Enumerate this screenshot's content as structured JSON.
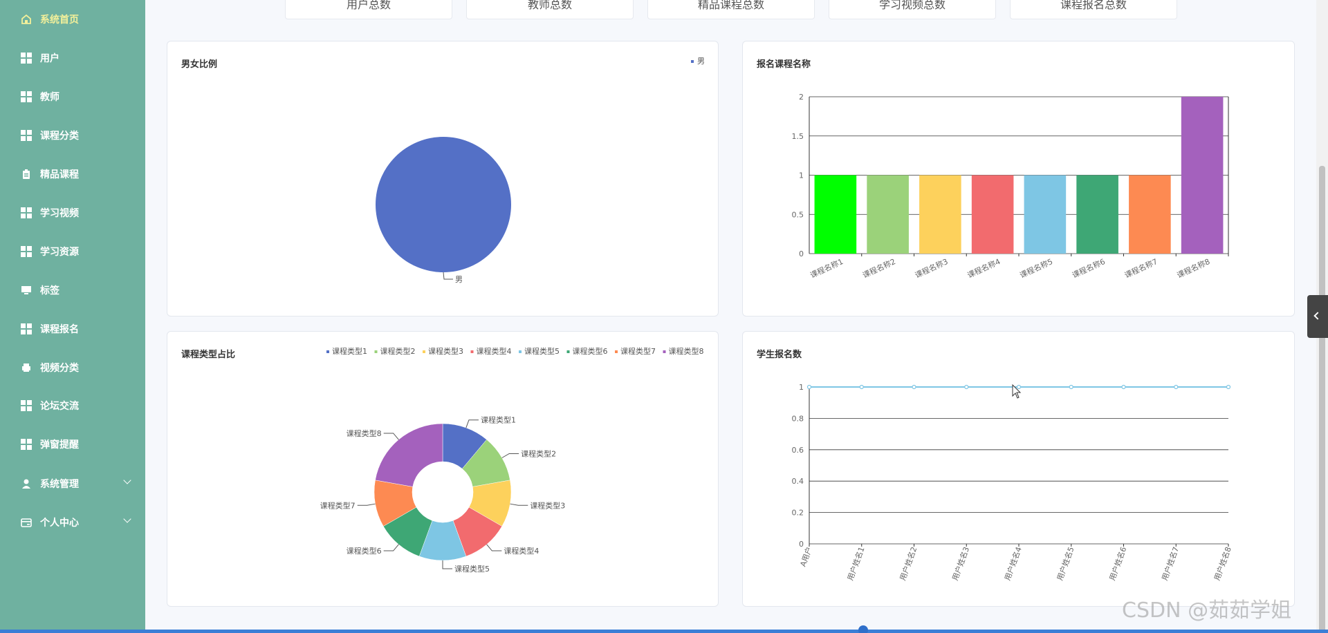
{
  "sidebar": {
    "items": [
      {
        "label": "系统首页",
        "icon": "home-icon",
        "active": true
      },
      {
        "label": "用户",
        "icon": "grid-icon"
      },
      {
        "label": "教师",
        "icon": "grid-icon"
      },
      {
        "label": "课程分类",
        "icon": "grid-icon"
      },
      {
        "label": "精品课程",
        "icon": "clipboard-icon"
      },
      {
        "label": "学习视频",
        "icon": "grid-icon"
      },
      {
        "label": "学习资源",
        "icon": "grid-icon"
      },
      {
        "label": "标签",
        "icon": "monitor-icon"
      },
      {
        "label": "课程报名",
        "icon": "grid-icon"
      },
      {
        "label": "视频分类",
        "icon": "printer-icon"
      },
      {
        "label": "论坛交流",
        "icon": "grid-icon"
      },
      {
        "label": "弹窗提醒",
        "icon": "grid-icon"
      },
      {
        "label": "系统管理",
        "icon": "user-icon",
        "expandable": true
      },
      {
        "label": "个人中心",
        "icon": "card-icon",
        "expandable": true
      }
    ]
  },
  "stats": {
    "cards": [
      "用户总数",
      "教师总数",
      "精品课程总数",
      "学习视频总数",
      "课程报名总数"
    ]
  },
  "panels": {
    "gender": {
      "title": "男女比例",
      "legend": "男",
      "slice_label": "男"
    },
    "enroll_course": {
      "title": "报名课程名称"
    },
    "course_type": {
      "title": "课程类型占比"
    },
    "student_enroll": {
      "title": "学生报名数"
    }
  },
  "chart_data": [
    {
      "type": "pie",
      "title": "男女比例",
      "categories": [
        "男"
      ],
      "values": [
        1
      ],
      "colors": [
        "#5470c6"
      ],
      "legend_position": "top-right"
    },
    {
      "type": "bar",
      "title": "报名课程名称",
      "categories": [
        "课程名称1",
        "课程名称2",
        "课程名称3",
        "课程名称4",
        "课程名称5",
        "课程名称6",
        "课程名称7",
        "课程名称8"
      ],
      "values": [
        1,
        1,
        1,
        1,
        1,
        1,
        1,
        2
      ],
      "colors": [
        "#00ff00",
        "#9bd27a",
        "#fdd15c",
        "#f26b6e",
        "#7ec6e4",
        "#3ea775",
        "#fd8a52",
        "#a461bd"
      ],
      "ylim": [
        0,
        2
      ],
      "yticks": [
        "0",
        "0.5",
        "1",
        "1.5",
        "2"
      ],
      "grid": true
    },
    {
      "type": "pie",
      "title": "课程类型占比",
      "categories": [
        "课程类型1",
        "课程类型2",
        "课程类型3",
        "课程类型4",
        "课程类型5",
        "课程类型6",
        "课程类型7",
        "课程类型8"
      ],
      "values": [
        1,
        1,
        1,
        1,
        1,
        1,
        1,
        2
      ],
      "colors": [
        "#5470c6",
        "#9bd27a",
        "#fdd15c",
        "#f26b6e",
        "#7ec6e4",
        "#3ea775",
        "#fd8a52",
        "#a461bd"
      ],
      "donut": true,
      "legend_position": "top-right"
    },
    {
      "type": "line",
      "title": "学生报名数",
      "categories": [
        "A用户",
        "用户姓名1",
        "用户姓名2",
        "用户姓名3",
        "用户姓名4",
        "用户姓名5",
        "用户姓名6",
        "用户姓名7",
        "用户姓名8"
      ],
      "values": [
        1,
        1,
        1,
        1,
        1,
        1,
        1,
        1,
        1
      ],
      "color": "#7ec6e4",
      "ylim": [
        0,
        1
      ],
      "yticks": [
        "0",
        "0.2",
        "0.4",
        "0.6",
        "0.8",
        "1"
      ],
      "grid": true
    }
  ],
  "watermark": "CSDN @茹茹学姐"
}
